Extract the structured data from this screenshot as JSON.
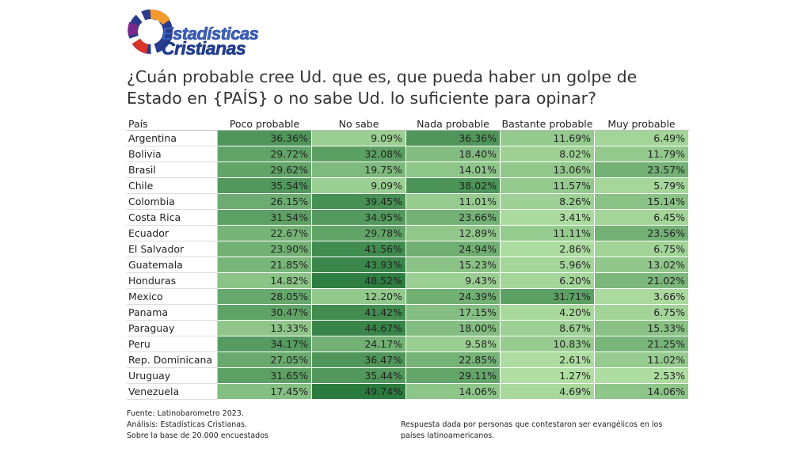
{
  "logo": {
    "line1": "Estadísticas",
    "line2": "Cristianas"
  },
  "title": "¿Cuán probable cree Ud. que es, que pueda haber un golpe de Estado en {PAÍS} o no sabe Ud. lo suficiente para opinar?",
  "chart_data": {
    "type": "table",
    "title": "¿Cuán probable cree Ud. que es, que pueda haber un golpe de Estado en {PAÍS} o no sabe Ud. lo suficiente para opinar?",
    "row_header": "País",
    "columns": [
      "Poco probable",
      "No sabe",
      "Nada probable",
      "Bastante probable",
      "Muy probable"
    ],
    "rows": [
      {
        "country": "Argentina",
        "values": [
          36.36,
          9.09,
          36.36,
          11.69,
          6.49
        ],
        "labels": [
          "36.36%",
          "9.09%",
          "36.36%",
          "11.69%",
          "6.49%"
        ]
      },
      {
        "country": "Bolivia",
        "values": [
          29.72,
          32.08,
          18.4,
          8.02,
          11.79
        ],
        "labels": [
          "29.72%",
          "32.08%",
          "18.40%",
          "8.02%",
          "11.79%"
        ]
      },
      {
        "country": "Brasil",
        "values": [
          29.62,
          19.75,
          14.01,
          13.06,
          23.57
        ],
        "labels": [
          "29.62%",
          "19.75%",
          "14.01%",
          "13.06%",
          "23.57%"
        ]
      },
      {
        "country": "Chile",
        "values": [
          35.54,
          9.09,
          38.02,
          11.57,
          5.79
        ],
        "labels": [
          "35.54%",
          "9.09%",
          "38.02%",
          "11.57%",
          "5.79%"
        ]
      },
      {
        "country": "Colombia",
        "values": [
          26.15,
          39.45,
          11.01,
          8.26,
          15.14
        ],
        "labels": [
          "26.15%",
          "39.45%",
          "11.01%",
          "8.26%",
          "15.14%"
        ]
      },
      {
        "country": "Costa Rica",
        "values": [
          31.54,
          34.95,
          23.66,
          3.41,
          6.45
        ],
        "labels": [
          "31.54%",
          "34.95%",
          "23.66%",
          "3.41%",
          "6.45%"
        ]
      },
      {
        "country": "Ecuador",
        "values": [
          22.67,
          29.78,
          12.89,
          11.11,
          23.56
        ],
        "labels": [
          "22.67%",
          "29.78%",
          "12.89%",
          "11.11%",
          "23.56%"
        ]
      },
      {
        "country": "El Salvador",
        "values": [
          23.9,
          41.56,
          24.94,
          2.86,
          6.75
        ],
        "labels": [
          "23.90%",
          "41.56%",
          "24.94%",
          "2.86%",
          "6.75%"
        ]
      },
      {
        "country": "Guatemala",
        "values": [
          21.85,
          43.93,
          15.23,
          5.96,
          13.02
        ],
        "labels": [
          "21.85%",
          "43.93%",
          "15.23%",
          "5.96%",
          "13.02%"
        ]
      },
      {
        "country": "Honduras",
        "values": [
          14.82,
          48.52,
          9.43,
          6.2,
          21.02
        ],
        "labels": [
          "14.82%",
          "48.52%",
          "9.43%",
          "6.20%",
          "21.02%"
        ]
      },
      {
        "country": "Mexico",
        "values": [
          28.05,
          12.2,
          24.39,
          31.71,
          3.66
        ],
        "labels": [
          "28.05%",
          "12.20%",
          "24.39%",
          "31.71%",
          "3.66%"
        ]
      },
      {
        "country": "Panama",
        "values": [
          30.47,
          41.42,
          17.15,
          4.2,
          6.75
        ],
        "labels": [
          "30.47%",
          "41.42%",
          "17.15%",
          "4.20%",
          "6.75%"
        ]
      },
      {
        "country": "Paraguay",
        "values": [
          13.33,
          44.67,
          18.0,
          8.67,
          15.33
        ],
        "labels": [
          "13.33%",
          "44.67%",
          "18.00%",
          "8.67%",
          "15.33%"
        ]
      },
      {
        "country": "Peru",
        "values": [
          34.17,
          24.17,
          9.58,
          10.83,
          21.25
        ],
        "labels": [
          "34.17%",
          "24.17%",
          "9.58%",
          "10.83%",
          "21.25%"
        ]
      },
      {
        "country": "Rep. Dominicana",
        "values": [
          27.05,
          36.47,
          22.85,
          2.61,
          11.02
        ],
        "labels": [
          "27.05%",
          "36.47%",
          "22.85%",
          "2.61%",
          "11.02%"
        ]
      },
      {
        "country": "Uruguay",
        "values": [
          31.65,
          35.44,
          29.11,
          1.27,
          2.53
        ],
        "labels": [
          "31.65%",
          "35.44%",
          "29.11%",
          "1.27%",
          "2.53%"
        ]
      },
      {
        "country": "Venezuela",
        "values": [
          17.45,
          49.74,
          14.06,
          4.69,
          14.06
        ],
        "labels": [
          "17.45%",
          "49.74%",
          "14.06%",
          "4.69%",
          "14.06%"
        ]
      }
    ],
    "color_scale": {
      "low": "#b5e2a6",
      "high": "#2a7a3e"
    }
  },
  "footer": {
    "source": "Fuente: Latinobarometro 2023.",
    "analysis": "Análisis: Estadísticas Cristianas.",
    "base": "Sobre la base de 20.000 encuestados",
    "note": "Respuesta dada por personas que contestaron ser evangélicos en los países latinoamericanos."
  }
}
